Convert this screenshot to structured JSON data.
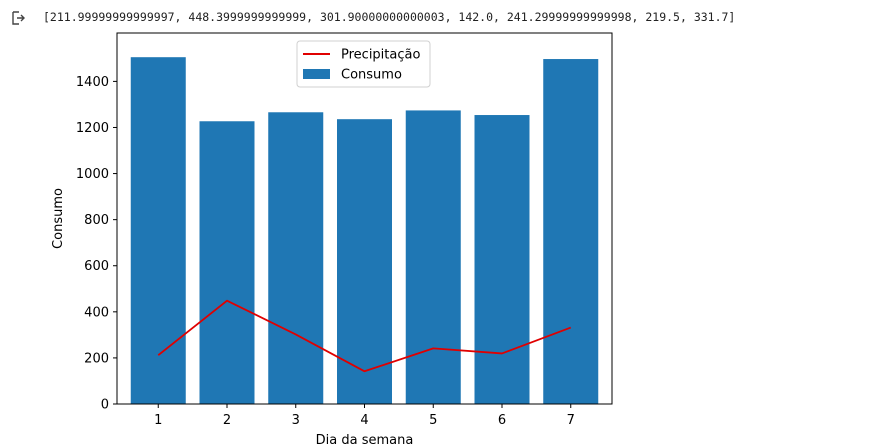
{
  "cell_output": {
    "icon": "output-arrow-icon",
    "text": "[211.99999999999997, 448.3999999999999, 301.90000000000003, 142.0, 241.29999999999998, 219.5, 331.7]"
  },
  "chart_data": {
    "type": "bar",
    "categories": [
      "1",
      "2",
      "3",
      "4",
      "5",
      "6",
      "7"
    ],
    "series": [
      {
        "name": "Consumo",
        "type": "bar",
        "color": "#1f77b4",
        "values": [
          1505,
          1227,
          1266,
          1236,
          1274,
          1254,
          1497
        ]
      },
      {
        "name": "Precipitação",
        "type": "line",
        "color": "#e00000",
        "values": [
          212.0,
          448.4,
          301.9,
          142.0,
          241.3,
          219.5,
          331.7
        ]
      }
    ],
    "xlabel": "Dia da semana",
    "ylabel": "Consumo",
    "ylim": [
      0,
      1610
    ],
    "yticks": [
      0,
      200,
      400,
      600,
      800,
      1000,
      1200,
      1400
    ],
    "legend_position": "upper center",
    "legend_order": [
      "Precipitação",
      "Consumo"
    ],
    "grid": false
  }
}
